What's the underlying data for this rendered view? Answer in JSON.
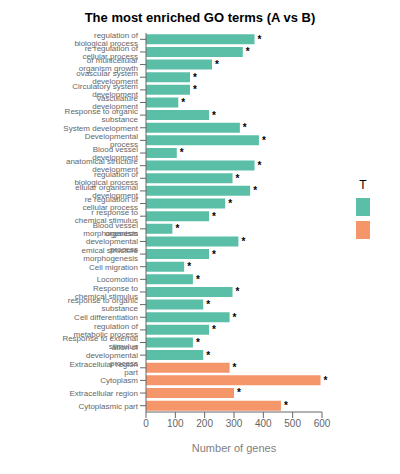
{
  "chart_data": {
    "type": "bar",
    "orientation": "horizontal",
    "title": "The most enriched GO terms (A vs B)",
    "x_label": "Number of genes",
    "categories": [
      "regulation of biological process",
      "re regulation of cellular process",
      "of multicellular organism growth",
      "ovascular system development",
      "Circulatory system development",
      "Vasculature development",
      "Response to organic substance",
      "System development",
      "Developmental process",
      "Blood vessel development",
      "anatomical structure development",
      "regulation of biological process",
      "ellular organismal development",
      "re regulation of cellular process",
      "r response to chemical stimulus",
      "Blood vessel morphogenesis",
      "organism developmental process",
      "emical structure morphogenesis",
      "Cell migration",
      "Locomotion",
      "Response to chemical stimulus",
      "response to organic substance",
      "Cell differentiation",
      "regulation of metabolic process",
      "Response to external stimulus",
      "ation of developmental process",
      "Extracellular region part",
      "Cytoplasm",
      "Extracellular region",
      "Cytoplasmic part"
    ],
    "values": [
      370,
      330,
      225,
      150,
      150,
      110,
      215,
      320,
      385,
      105,
      370,
      295,
      355,
      270,
      215,
      90,
      315,
      215,
      130,
      160,
      295,
      195,
      285,
      215,
      160,
      195,
      285,
      595,
      300,
      460
    ],
    "colors": [
      "#5bbfa8",
      "#5bbfa8",
      "#5bbfa8",
      "#5bbfa8",
      "#5bbfa8",
      "#5bbfa8",
      "#5bbfa8",
      "#5bbfa8",
      "#5bbfa8",
      "#5bbfa8",
      "#5bbfa8",
      "#5bbfa8",
      "#5bbfa8",
      "#5bbfa8",
      "#5bbfa8",
      "#5bbfa8",
      "#5bbfa8",
      "#5bbfa8",
      "#5bbfa8",
      "#5bbfa8",
      "#5bbfa8",
      "#5bbfa8",
      "#5bbfa8",
      "#5bbfa8",
      "#5bbfa8",
      "#5bbfa8",
      "#f4956a",
      "#f4956a",
      "#f4956a",
      "#f4956a"
    ],
    "annotations": [
      "*",
      "*",
      "*",
      "*",
      "*",
      "*",
      "*",
      "*",
      "*",
      "*",
      "*",
      "*",
      "*",
      "*",
      "*",
      "*",
      "*",
      "*",
      "*",
      "*",
      "*",
      "*",
      "*",
      "*",
      "*",
      "*",
      "*",
      "*",
      "*",
      "*"
    ],
    "xlim": [
      0,
      600
    ],
    "xticks": [
      0,
      100,
      200,
      300,
      400,
      500,
      600
    ],
    "grid": false,
    "legend": "right",
    "legend_title": "T"
  }
}
